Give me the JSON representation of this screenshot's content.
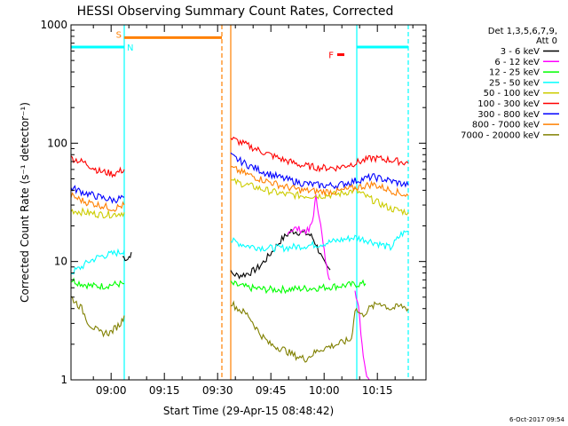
{
  "chart_data": {
    "type": "line",
    "title": "HESSI Observing Summary Count Rates, Corrected",
    "xlabel": "Start Time (29-Apr-15 08:48:42)",
    "ylabel": "Corrected Count Rate (s⁻¹ detector⁻¹)",
    "yscale": "log",
    "ylim": [
      1,
      1000
    ],
    "xlim_minutes_after_start": [
      0,
      100
    ],
    "x_ticks": [
      "09:00",
      "09:15",
      "09:30",
      "09:45",
      "10:00",
      "10:15"
    ],
    "y_ticks": [
      "1",
      "10",
      "100",
      "1000"
    ],
    "legend": {
      "header": "Det 1,3,5,6,7,9,",
      "atten": "Att 0",
      "placement": "right"
    },
    "series": [
      {
        "name": "3 - 6 keV",
        "color": "#000000",
        "segments": [
          {
            "x": [
              14.5,
              16,
              17
            ],
            "y": [
              11,
              10.5,
              12
            ]
          },
          {
            "x": [
              45,
              47,
              49,
              51,
              53,
              55,
              57,
              59,
              61,
              62,
              63,
              65,
              67,
              68,
              69,
              70,
              71,
              72,
              73
            ],
            "y": [
              8,
              7.6,
              7.8,
              8.2,
              9,
              10.5,
              12.5,
              15,
              17,
              18,
              18,
              17.5,
              17,
              16,
              14,
              12,
              10,
              9,
              8.5
            ]
          }
        ]
      },
      {
        "name": "6 - 12 keV",
        "color": "#ff00ff",
        "segments": [
          {
            "x": [
              61,
              63,
              65,
              67,
              68,
              69,
              70,
              71,
              72,
              73
            ],
            "y": [
              18,
              19,
              18.5,
              18,
              22,
              35,
              24,
              14,
              9,
              7
            ]
          },
          {
            "x": [
              80,
              81,
              82,
              83,
              84
            ],
            "y": [
              6,
              4,
              2,
              1.2,
              1
            ]
          }
        ]
      },
      {
        "name": "12 - 25 keV",
        "color": "#00ff00",
        "segments": [
          {
            "x": [
              0,
              3,
              6,
              9,
              12,
              15
            ],
            "y": [
              7,
              6.5,
              6.2,
              6.2,
              6.4,
              6.5
            ]
          },
          {
            "x": [
              45,
              50,
              55,
              60,
              65,
              70,
              75,
              80,
              83
            ],
            "y": [
              6.5,
              6,
              5.8,
              5.8,
              5.9,
              6,
              6.2,
              6.4,
              6.5
            ]
          }
        ]
      },
      {
        "name": "25 - 50 keV",
        "color": "#00ffff",
        "segments": [
          {
            "x": [
              0,
              3,
              5,
              8,
              11,
              14,
              15
            ],
            "y": [
              8,
              9,
              10,
              11,
              11.5,
              12,
              12.5
            ]
          },
          {
            "x": [
              45,
              50,
              55,
              60,
              65,
              70,
              75,
              80,
              84,
              87,
              90,
              93,
              95
            ],
            "y": [
              15,
              13.5,
              13,
              13,
              13.5,
              14,
              15,
              16,
              15,
              14,
              13,
              17,
              18
            ]
          }
        ]
      },
      {
        "name": "50 - 100 keV",
        "color": "#cccc00",
        "segments": [
          {
            "x": [
              0,
              4,
              8,
              12,
              15
            ],
            "y": [
              27,
              26,
              25,
              25,
              26
            ]
          },
          {
            "x": [
              45,
              50,
              55,
              60,
              65,
              70,
              75,
              80,
              85,
              90,
              95
            ],
            "y": [
              48,
              44,
              40,
              37,
              36,
              36,
              37,
              40,
              33,
              28,
              26
            ]
          }
        ]
      },
      {
        "name": "100 - 300 keV",
        "color": "#ff0000",
        "segments": [
          {
            "x": [
              0,
              4,
              8,
              12,
              15
            ],
            "y": [
              75,
              68,
              58,
              55,
              60
            ]
          },
          {
            "x": [
              45,
              50,
              55,
              60,
              65,
              70,
              75,
              80,
              85,
              90,
              95
            ],
            "y": [
              110,
              95,
              82,
              72,
              65,
              62,
              62,
              68,
              75,
              72,
              68
            ]
          }
        ]
      },
      {
        "name": "300 - 800 keV",
        "color": "#0000ff",
        "segments": [
          {
            "x": [
              0,
              4,
              8,
              12,
              15
            ],
            "y": [
              42,
              38,
              35,
              33,
              35
            ]
          },
          {
            "x": [
              45,
              50,
              55,
              60,
              65,
              70,
              75,
              80,
              85,
              90,
              95
            ],
            "y": [
              78,
              65,
              56,
              50,
              46,
              44,
              44,
              48,
              52,
              48,
              44
            ]
          }
        ]
      },
      {
        "name": "800 - 7000 keV",
        "color": "#ff8000",
        "segments": [
          {
            "x": [
              0,
              4,
              8,
              12,
              15
            ],
            "y": [
              36,
              32,
              30,
              28,
              30
            ]
          },
          {
            "x": [
              45,
              50,
              55,
              60,
              65,
              70,
              75,
              80,
              85,
              90,
              95
            ],
            "y": [
              62,
              54,
              48,
              43,
              40,
              39,
              39,
              42,
              45,
              40,
              36
            ]
          }
        ]
      },
      {
        "name": "7000 - 20000 keV",
        "color": "#808000",
        "segments": [
          {
            "x": [
              0,
              3,
              5,
              8,
              11,
              14,
              15
            ],
            "y": [
              5,
              4,
              3,
              2.5,
              2.5,
              3,
              3.5
            ]
          },
          {
            "x": [
              45,
              47,
              50,
              53,
              56,
              60,
              63,
              66,
              70,
              75,
              79,
              80,
              82,
              84,
              87,
              90,
              93,
              95
            ],
            "y": [
              4.5,
              4,
              3.5,
              2.5,
              2,
              1.8,
              1.6,
              1.5,
              1.8,
              2,
              2.2,
              4,
              3.5,
              4,
              4.5,
              4,
              4.2,
              4
            ]
          }
        ]
      }
    ],
    "annotations": [
      {
        "label": "S",
        "x_start": 15,
        "x_end": 42.5,
        "y": 780,
        "color": "#ff8000"
      },
      {
        "label": "N",
        "x_start": 0,
        "x_end": 15,
        "y": 650,
        "color": "#00ffff"
      },
      {
        "label": "N",
        "x_start": 80.5,
        "x_end": 95,
        "y": 650,
        "color": "#00ffff"
      },
      {
        "label": "F",
        "x_start": 75,
        "x_end": 77,
        "y": 560,
        "color": "#ff0000"
      }
    ],
    "vertical_markers": [
      {
        "x": 15,
        "color": "#00ffff",
        "style": "solid"
      },
      {
        "x": 42.5,
        "color": "#ff8000",
        "style": "dashed"
      },
      {
        "x": 45,
        "color": "#ff8000",
        "style": "solid"
      },
      {
        "x": 80.5,
        "color": "#00ffff",
        "style": "solid"
      },
      {
        "x": 95,
        "color": "#00ffff",
        "style": "dashed"
      }
    ]
  },
  "footer": {
    "date": "6-Oct-2017 09:54"
  }
}
